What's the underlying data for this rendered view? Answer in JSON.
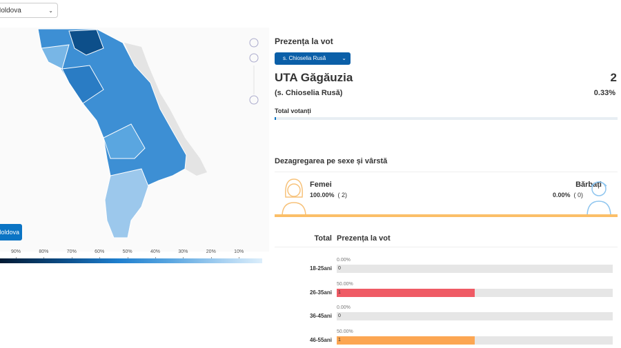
{
  "header": {
    "country_select": "Moldova"
  },
  "map": {
    "button": "Moldova",
    "legend": {
      "ticks": [
        {
          "value": 90,
          "label": "90%"
        },
        {
          "value": 80,
          "label": "80%"
        },
        {
          "value": 70,
          "label": "70%"
        },
        {
          "value": 60,
          "label": "60%"
        },
        {
          "value": 50,
          "label": "50%"
        },
        {
          "value": 40,
          "label": "40%"
        },
        {
          "value": 30,
          "label": "30%"
        },
        {
          "value": 20,
          "label": "20%"
        },
        {
          "value": 10,
          "label": "10%"
        }
      ]
    }
  },
  "panel": {
    "title": "Prezența la vot",
    "locality_select": "s. Chioselia Rusă",
    "region": "UTA Găgăuzia",
    "locality": "(s. Chioselia Rusă)",
    "voters": 2,
    "turnout": 0.33,
    "turnout_label": "0.33%",
    "voters_label": "Total votanți",
    "xlim": [
      0,
      100
    ]
  },
  "gender": {
    "title": "Dezagregarea pe sexe și vârstă",
    "female": {
      "label": "Femei",
      "percent": 100,
      "percent_label": "100.00%",
      "count": 2,
      "count_label": "( 2)"
    },
    "male": {
      "label": "Bărbați",
      "percent": 0,
      "percent_label": "0.00%",
      "count": 0,
      "count_label": "( 0)"
    }
  },
  "age": {
    "header_total": "Total",
    "header_turnout": "Prezența la vot",
    "xlim": [
      0,
      100
    ],
    "groups": [
      {
        "label": "18-25ani",
        "percent": 0,
        "percent_label": "0.00%",
        "count": 0,
        "color": "#e6e6e6"
      },
      {
        "label": "26-35ani",
        "percent": 50,
        "percent_label": "50.00%",
        "count": 1,
        "color": "#ef5b65"
      },
      {
        "label": "36-45ani",
        "percent": 0,
        "percent_label": "0.00%",
        "count": 0,
        "color": "#e6e6e6"
      },
      {
        "label": "46-55ani",
        "percent": 50,
        "percent_label": "50.00%",
        "count": 1,
        "color": "#fca652"
      }
    ]
  }
}
